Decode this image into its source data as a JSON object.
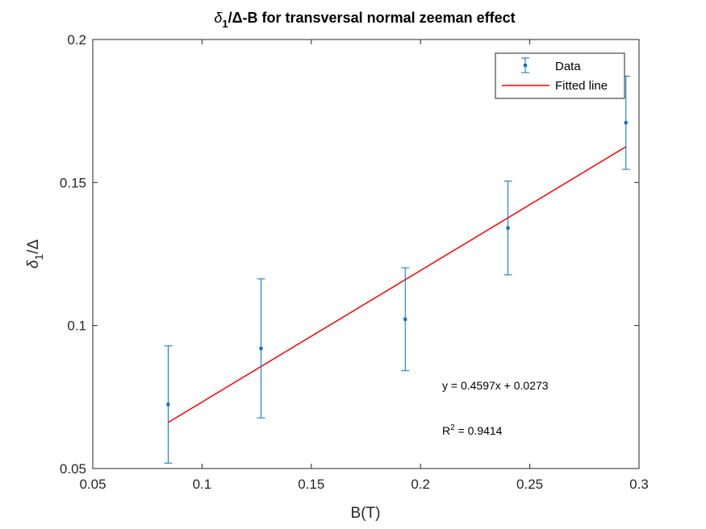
{
  "chart_data": {
    "type": "scatter",
    "title_parts": [
      "δ",
      "1",
      "/Δ-B for transversal normal zeeman effect"
    ],
    "xlabel": "B(T)",
    "ylabel_parts": [
      "δ",
      "1",
      "/Δ"
    ],
    "xlim": [
      0.05,
      0.3
    ],
    "ylim": [
      0.05,
      0.2
    ],
    "xticks": [
      0.05,
      0.1,
      0.15,
      0.2,
      0.25,
      0.3
    ],
    "xtick_labels": [
      "0.05",
      "0.1",
      "0.15",
      "0.2",
      "0.25",
      "0.3"
    ],
    "yticks": [
      0.05,
      0.1,
      0.15,
      0.2
    ],
    "ytick_labels": [
      "0.05",
      "0.1",
      "0.15",
      "0.2"
    ],
    "grid": false,
    "legend_position": "top-right",
    "series": [
      {
        "name": "Data",
        "kind": "errorbar",
        "color": "#0072BD",
        "x": [
          0.0845,
          0.127,
          0.193,
          0.24,
          0.294
        ],
        "y": [
          0.0724,
          0.092,
          0.1022,
          0.1341,
          0.1709
        ],
        "err": [
          0.0205,
          0.0243,
          0.018,
          0.0164,
          0.0163
        ]
      },
      {
        "name": "Fitted line",
        "kind": "line",
        "color": "#FF0000",
        "x": [
          0.0845,
          0.294
        ],
        "y": [
          0.0661,
          0.1625
        ]
      }
    ],
    "annotations": {
      "equation": "y = 0.4597x + 0.0273",
      "r2_label": "R",
      "r2_sup": "2",
      "r2_value": " = 0.9414"
    }
  }
}
